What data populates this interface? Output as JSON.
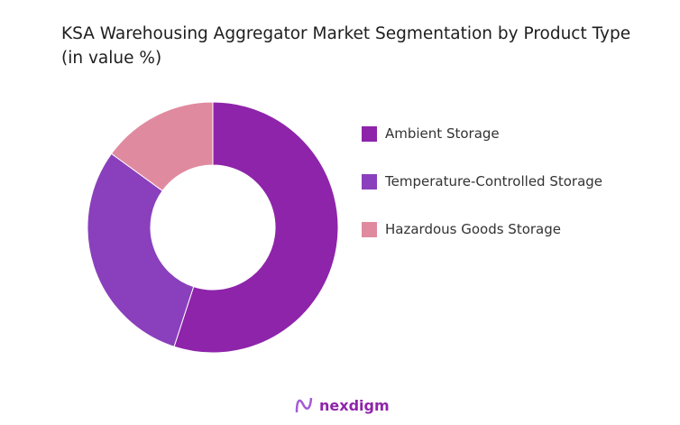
{
  "chart_data": {
    "type": "donut",
    "title": "KSA Warehousing Aggregator Market Segmentation by Product Type (in value %)",
    "categories": [
      "Ambient Storage",
      "Temperature-Controlled Storage",
      "Hazardous Goods Storage"
    ],
    "values": [
      55,
      30,
      15
    ],
    "unit": "%",
    "colors": [
      "#8e24aa",
      "#8a40bc",
      "#e08aa0"
    ],
    "legend_position": "right"
  },
  "logo": {
    "text": "nexdigm",
    "color": "#8e24aa"
  }
}
